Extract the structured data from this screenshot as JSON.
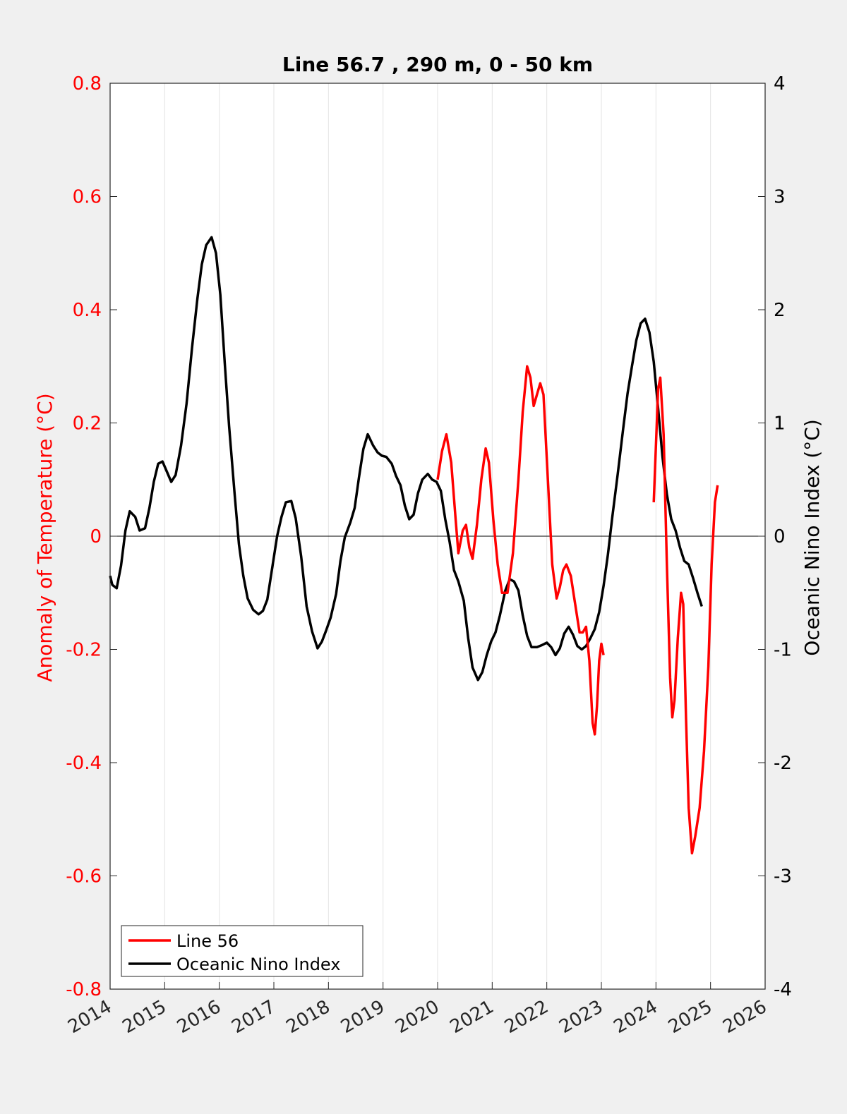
{
  "chart_data": {
    "type": "line",
    "title": "Line 56.7 , 290 m, 0 - 50 km",
    "xlabel": "",
    "ylabel_left": "Anomaly of Temperature (°C)",
    "ylabel_right": "Oceanic Nino Index (°C)",
    "xlim": [
      2014,
      2026
    ],
    "ylim_left": [
      -0.8,
      0.8
    ],
    "ylim_right": [
      -4,
      4
    ],
    "x_ticks": [
      "2014",
      "2015",
      "2016",
      "2017",
      "2018",
      "2019",
      "2020",
      "2021",
      "2022",
      "2023",
      "2024",
      "2025",
      "2026"
    ],
    "y_ticks_left": [
      "0.8",
      "0.6",
      "0.4",
      "0.2",
      "0",
      "-0.2",
      "-0.4",
      "-0.6",
      "-0.8"
    ],
    "y_ticks_right": [
      "4",
      "3",
      "2",
      "1",
      "0",
      "-1",
      "-2",
      "-3",
      "-4"
    ],
    "grid": "vertical",
    "legend_position": "bottom-left",
    "colors": {
      "line56": "#ff0000",
      "oni": "#000000",
      "left_axis": "#ff0000",
      "right_axis": "#000000"
    },
    "series": [
      {
        "name": "Line 56",
        "axis": "left",
        "segments": [
          [
            [
              2020.0,
              0.1
            ],
            [
              2020.08,
              0.15
            ],
            [
              2020.16,
              0.18
            ],
            [
              2020.25,
              0.13
            ],
            [
              2020.33,
              0.03
            ],
            [
              2020.38,
              -0.03
            ],
            [
              2020.46,
              0.01
            ],
            [
              2020.52,
              0.02
            ],
            [
              2020.58,
              -0.02
            ],
            [
              2020.64,
              -0.04
            ],
            [
              2020.72,
              0.02
            ],
            [
              2020.8,
              0.1
            ],
            [
              2020.88,
              0.155
            ],
            [
              2020.94,
              0.13
            ],
            [
              2021.02,
              0.03
            ],
            [
              2021.1,
              -0.05
            ],
            [
              2021.18,
              -0.1
            ],
            [
              2021.28,
              -0.1
            ],
            [
              2021.38,
              -0.03
            ],
            [
              2021.48,
              0.1
            ],
            [
              2021.56,
              0.22
            ],
            [
              2021.64,
              0.3
            ],
            [
              2021.7,
              0.28
            ],
            [
              2021.76,
              0.23
            ],
            [
              2021.82,
              0.25
            ],
            [
              2021.88,
              0.27
            ],
            [
              2021.94,
              0.25
            ],
            [
              2022.02,
              0.1
            ],
            [
              2022.1,
              -0.05
            ],
            [
              2022.18,
              -0.11
            ],
            [
              2022.24,
              -0.09
            ],
            [
              2022.3,
              -0.06
            ],
            [
              2022.36,
              -0.05
            ],
            [
              2022.44,
              -0.07
            ],
            [
              2022.52,
              -0.12
            ],
            [
              2022.6,
              -0.17
            ],
            [
              2022.66,
              -0.17
            ],
            [
              2022.72,
              -0.16
            ],
            [
              2022.78,
              -0.22
            ],
            [
              2022.84,
              -0.33
            ],
            [
              2022.88,
              -0.35
            ],
            [
              2022.92,
              -0.3
            ],
            [
              2022.96,
              -0.22
            ],
            [
              2023.0,
              -0.19
            ],
            [
              2023.04,
              -0.21
            ]
          ],
          [
            [
              2023.96,
              0.06
            ],
            [
              2024.0,
              0.16
            ],
            [
              2024.04,
              0.26
            ],
            [
              2024.08,
              0.28
            ],
            [
              2024.14,
              0.18
            ],
            [
              2024.2,
              -0.05
            ],
            [
              2024.26,
              -0.25
            ],
            [
              2024.3,
              -0.32
            ],
            [
              2024.34,
              -0.29
            ],
            [
              2024.4,
              -0.18
            ],
            [
              2024.46,
              -0.1
            ],
            [
              2024.5,
              -0.12
            ],
            [
              2024.55,
              -0.32
            ],
            [
              2024.6,
              -0.48
            ],
            [
              2024.66,
              -0.56
            ],
            [
              2024.72,
              -0.53
            ],
            [
              2024.8,
              -0.48
            ],
            [
              2024.88,
              -0.38
            ],
            [
              2024.96,
              -0.23
            ],
            [
              2025.02,
              -0.05
            ],
            [
              2025.08,
              0.06
            ],
            [
              2025.13,
              0.09
            ]
          ]
        ]
      },
      {
        "name": "Oceanic Nino Index",
        "axis": "right",
        "points": [
          [
            2014.0,
            -0.35
          ],
          [
            2014.04,
            -0.43
          ],
          [
            2014.12,
            -0.46
          ],
          [
            2014.2,
            -0.26
          ],
          [
            2014.28,
            0.05
          ],
          [
            2014.36,
            0.22
          ],
          [
            2014.46,
            0.17
          ],
          [
            2014.54,
            0.05
          ],
          [
            2014.64,
            0.07
          ],
          [
            2014.72,
            0.25
          ],
          [
            2014.8,
            0.48
          ],
          [
            2014.88,
            0.64
          ],
          [
            2014.96,
            0.66
          ],
          [
            2015.04,
            0.57
          ],
          [
            2015.12,
            0.48
          ],
          [
            2015.2,
            0.54
          ],
          [
            2015.3,
            0.8
          ],
          [
            2015.4,
            1.17
          ],
          [
            2015.5,
            1.66
          ],
          [
            2015.6,
            2.1
          ],
          [
            2015.68,
            2.4
          ],
          [
            2015.76,
            2.57
          ],
          [
            2015.86,
            2.64
          ],
          [
            2015.94,
            2.5
          ],
          [
            2016.02,
            2.13
          ],
          [
            2016.1,
            1.53
          ],
          [
            2016.18,
            0.97
          ],
          [
            2016.28,
            0.38
          ],
          [
            2016.36,
            -0.07
          ],
          [
            2016.44,
            -0.35
          ],
          [
            2016.52,
            -0.55
          ],
          [
            2016.62,
            -0.65
          ],
          [
            2016.72,
            -0.69
          ],
          [
            2016.8,
            -0.66
          ],
          [
            2016.88,
            -0.56
          ],
          [
            2016.96,
            -0.31
          ],
          [
            2017.06,
            0.0
          ],
          [
            2017.14,
            0.17
          ],
          [
            2017.22,
            0.3
          ],
          [
            2017.32,
            0.31
          ],
          [
            2017.4,
            0.16
          ],
          [
            2017.5,
            -0.18
          ],
          [
            2017.6,
            -0.62
          ],
          [
            2017.7,
            -0.84
          ],
          [
            2017.8,
            -0.99
          ],
          [
            2017.88,
            -0.93
          ],
          [
            2017.96,
            -0.83
          ],
          [
            2018.04,
            -0.72
          ],
          [
            2018.14,
            -0.51
          ],
          [
            2018.22,
            -0.22
          ],
          [
            2018.3,
            -0.01
          ],
          [
            2018.4,
            0.12
          ],
          [
            2018.48,
            0.25
          ],
          [
            2018.56,
            0.52
          ],
          [
            2018.64,
            0.77
          ],
          [
            2018.72,
            0.9
          ],
          [
            2018.82,
            0.8
          ],
          [
            2018.9,
            0.74
          ],
          [
            2018.98,
            0.71
          ],
          [
            2019.06,
            0.7
          ],
          [
            2019.16,
            0.64
          ],
          [
            2019.24,
            0.53
          ],
          [
            2019.32,
            0.45
          ],
          [
            2019.4,
            0.27
          ],
          [
            2019.48,
            0.15
          ],
          [
            2019.56,
            0.19
          ],
          [
            2019.64,
            0.38
          ],
          [
            2019.72,
            0.5
          ],
          [
            2019.82,
            0.55
          ],
          [
            2019.9,
            0.5
          ],
          [
            2019.98,
            0.48
          ],
          [
            2020.06,
            0.4
          ],
          [
            2020.14,
            0.15
          ],
          [
            2020.22,
            -0.05
          ],
          [
            2020.3,
            -0.3
          ],
          [
            2020.38,
            -0.4
          ],
          [
            2020.48,
            -0.57
          ],
          [
            2020.56,
            -0.9
          ],
          [
            2020.64,
            -1.16
          ],
          [
            2020.74,
            -1.27
          ],
          [
            2020.82,
            -1.2
          ],
          [
            2020.9,
            -1.05
          ],
          [
            2020.98,
            -0.93
          ],
          [
            2021.06,
            -0.85
          ],
          [
            2021.14,
            -0.7
          ],
          [
            2021.24,
            -0.48
          ],
          [
            2021.32,
            -0.38
          ],
          [
            2021.4,
            -0.4
          ],
          [
            2021.48,
            -0.48
          ],
          [
            2021.56,
            -0.7
          ],
          [
            2021.64,
            -0.88
          ],
          [
            2021.72,
            -0.98
          ],
          [
            2021.82,
            -0.98
          ],
          [
            2021.92,
            -0.96
          ],
          [
            2022.0,
            -0.94
          ],
          [
            2022.08,
            -0.98
          ],
          [
            2022.16,
            -1.05
          ],
          [
            2022.24,
            -0.99
          ],
          [
            2022.32,
            -0.86
          ],
          [
            2022.4,
            -0.8
          ],
          [
            2022.48,
            -0.87
          ],
          [
            2022.56,
            -0.97
          ],
          [
            2022.64,
            -1.0
          ],
          [
            2022.72,
            -0.97
          ],
          [
            2022.8,
            -0.9
          ],
          [
            2022.88,
            -0.82
          ],
          [
            2022.96,
            -0.67
          ],
          [
            2023.04,
            -0.44
          ],
          [
            2023.12,
            -0.16
          ],
          [
            2023.2,
            0.17
          ],
          [
            2023.3,
            0.55
          ],
          [
            2023.4,
            0.95
          ],
          [
            2023.48,
            1.26
          ],
          [
            2023.56,
            1.5
          ],
          [
            2023.64,
            1.73
          ],
          [
            2023.72,
            1.88
          ],
          [
            2023.8,
            1.92
          ],
          [
            2023.88,
            1.8
          ],
          [
            2023.96,
            1.54
          ],
          [
            2024.04,
            1.13
          ],
          [
            2024.12,
            0.7
          ],
          [
            2024.2,
            0.37
          ],
          [
            2024.28,
            0.15
          ],
          [
            2024.36,
            0.05
          ],
          [
            2024.44,
            -0.1
          ],
          [
            2024.52,
            -0.22
          ],
          [
            2024.6,
            -0.25
          ],
          [
            2024.68,
            -0.37
          ],
          [
            2024.76,
            -0.5
          ],
          [
            2024.84,
            -0.62
          ]
        ]
      }
    ]
  }
}
